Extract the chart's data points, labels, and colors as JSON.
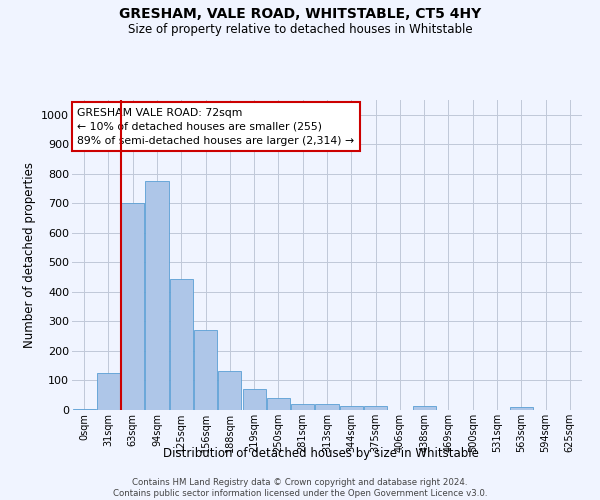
{
  "title": "GRESHAM, VALE ROAD, WHITSTABLE, CT5 4HY",
  "subtitle": "Size of property relative to detached houses in Whitstable",
  "xlabel": "Distribution of detached houses by size in Whitstable",
  "ylabel": "Number of detached properties",
  "categories": [
    "0sqm",
    "31sqm",
    "63sqm",
    "94sqm",
    "125sqm",
    "156sqm",
    "188sqm",
    "219sqm",
    "250sqm",
    "281sqm",
    "313sqm",
    "344sqm",
    "375sqm",
    "406sqm",
    "438sqm",
    "469sqm",
    "500sqm",
    "531sqm",
    "563sqm",
    "594sqm",
    "625sqm"
  ],
  "bar_heights": [
    5,
    125,
    700,
    775,
    443,
    272,
    132,
    70,
    40,
    22,
    22,
    12,
    12,
    0,
    12,
    0,
    0,
    0,
    10,
    0,
    0
  ],
  "bar_color": "#aec6e8",
  "bar_edge_color": "#5a9fd4",
  "vline_color": "#cc0000",
  "annotation_text": "GRESHAM VALE ROAD: 72sqm\n← 10% of detached houses are smaller (255)\n89% of semi-detached houses are larger (2,314) →",
  "annotation_box_color": "#ffffff",
  "annotation_box_edge": "#cc0000",
  "ylim": [
    0,
    1050
  ],
  "yticks": [
    0,
    100,
    200,
    300,
    400,
    500,
    600,
    700,
    800,
    900,
    1000
  ],
  "grid_color": "#c0c8d8",
  "footer_line1": "Contains HM Land Registry data © Crown copyright and database right 2024.",
  "footer_line2": "Contains public sector information licensed under the Open Government Licence v3.0.",
  "bg_color": "#f0f4ff"
}
